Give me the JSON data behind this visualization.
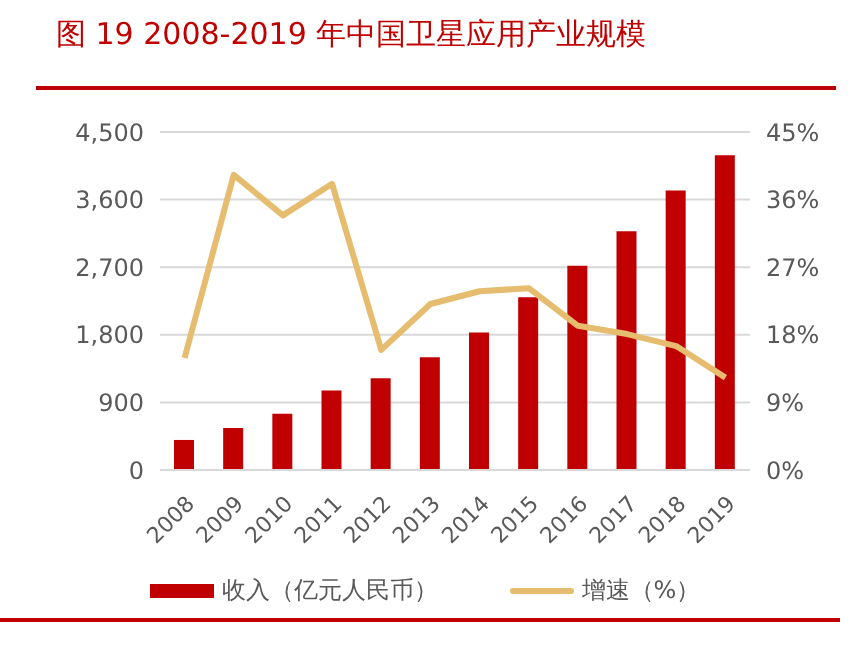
{
  "chart_data": {
    "type": "bar",
    "title": "图 19 2008-2019 年中国卫星应用产业规模",
    "categories": [
      "2008",
      "2009",
      "2010",
      "2011",
      "2012",
      "2013",
      "2014",
      "2015",
      "2016",
      "2017",
      "2018",
      "2019"
    ],
    "series": [
      {
        "name": "收入（亿元人民币）",
        "color": "#c00000",
        "values": [
          400,
          560,
          750,
          1060,
          1220,
          1500,
          1830,
          2300,
          2720,
          3180,
          3720,
          4190
        ]
      },
      {
        "name": "增速（%）",
        "type": "line",
        "axis": "y2",
        "color": "#e6bc6e",
        "values": [
          14.9,
          39.3,
          33.9,
          38.1,
          16.0,
          22.1,
          23.8,
          24.2,
          19.2,
          18.1,
          16.5,
          12.3
        ]
      }
    ],
    "ylim": [
      0,
      4500
    ],
    "yticks": [
      {
        "value": 0,
        "label": "0"
      },
      {
        "value": 900,
        "label": "900"
      },
      {
        "value": 1800,
        "label": "1,800"
      },
      {
        "value": 2700,
        "label": "2,700"
      },
      {
        "value": 3600,
        "label": "3,600"
      },
      {
        "value": 4500,
        "label": "4,500"
      }
    ],
    "y2lim": [
      0,
      45
    ],
    "y2ticks": [
      {
        "value": 0,
        "label": "0%"
      },
      {
        "value": 9,
        "label": "9%"
      },
      {
        "value": 18,
        "label": "18%"
      },
      {
        "value": 27,
        "label": "27%"
      },
      {
        "value": 36,
        "label": "36%"
      },
      {
        "value": 45,
        "label": "45%"
      }
    ],
    "grid": "y",
    "legend": "bottom",
    "marker": "none",
    "line_style": "solid"
  }
}
